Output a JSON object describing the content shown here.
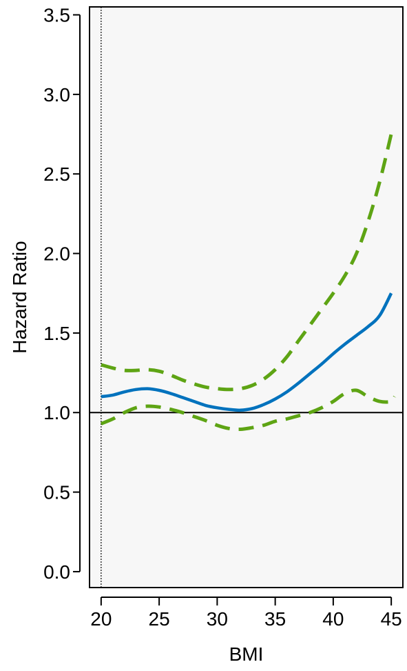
{
  "chart_data": {
    "type": "line",
    "xlabel": "BMI",
    "ylabel": "Hazard Ratio",
    "xlim": [
      19,
      46
    ],
    "ylim": [
      -0.1,
      3.55
    ],
    "x_ticks": [
      "20",
      "25",
      "30",
      "35",
      "40",
      "45"
    ],
    "y_ticks": [
      "0.0",
      "0.5",
      "1.0",
      "1.5",
      "2.0",
      "2.5",
      "3.0",
      "3.5"
    ],
    "reference_lines": {
      "horizontal_y": 1.0,
      "vertical_x": 20
    },
    "colors": {
      "estimate": "#0072bd",
      "ci": "#5ea414",
      "reference": "#000000",
      "background": "#f7f7f7"
    },
    "grid": false,
    "series": [
      {
        "role": "estimate",
        "x": [
          20,
          21,
          22,
          23,
          24,
          25,
          26,
          27,
          28,
          29,
          30,
          31,
          32,
          33,
          34,
          35,
          36,
          37,
          38,
          39,
          40,
          41,
          42,
          43,
          44,
          45
        ],
        "values": [
          1.1,
          1.11,
          1.13,
          1.145,
          1.15,
          1.14,
          1.12,
          1.095,
          1.07,
          1.045,
          1.03,
          1.02,
          1.015,
          1.025,
          1.05,
          1.085,
          1.13,
          1.185,
          1.245,
          1.305,
          1.37,
          1.43,
          1.485,
          1.54,
          1.61,
          1.75
        ]
      },
      {
        "role": "ci-upper",
        "x": [
          20,
          21,
          22,
          23,
          24,
          25,
          26,
          27,
          28,
          29,
          30,
          31,
          32,
          33,
          34,
          35,
          36,
          37,
          38,
          39,
          40,
          41,
          42,
          43,
          44,
          45
        ],
        "values": [
          1.3,
          1.28,
          1.265,
          1.265,
          1.27,
          1.26,
          1.235,
          1.205,
          1.18,
          1.16,
          1.15,
          1.145,
          1.15,
          1.17,
          1.21,
          1.27,
          1.35,
          1.45,
          1.55,
          1.65,
          1.75,
          1.86,
          2.0,
          2.2,
          2.45,
          2.75
        ]
      },
      {
        "role": "ci-lower",
        "x": [
          20,
          21,
          22,
          23,
          24,
          25,
          26,
          27,
          28,
          29,
          30,
          31,
          32,
          33,
          34,
          35,
          36,
          37,
          38,
          39,
          40,
          41,
          42,
          43,
          44,
          45,
          45.3
        ],
        "values": [
          0.93,
          0.96,
          1.0,
          1.03,
          1.04,
          1.035,
          1.02,
          1.0,
          0.975,
          0.95,
          0.92,
          0.9,
          0.895,
          0.905,
          0.92,
          0.945,
          0.96,
          0.98,
          1.0,
          1.03,
          1.07,
          1.12,
          1.14,
          1.1,
          1.07,
          1.07,
          1.1
        ]
      }
    ]
  }
}
